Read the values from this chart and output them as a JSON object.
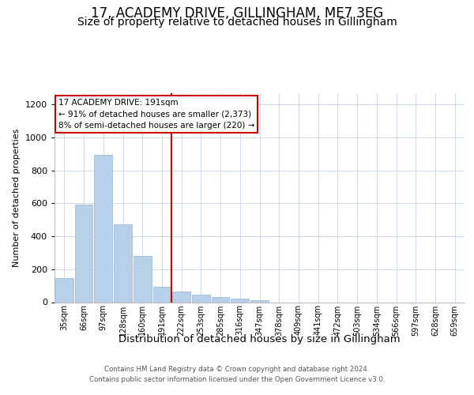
{
  "title": "17, ACADEMY DRIVE, GILLINGHAM, ME7 3EG",
  "subtitle": "Size of property relative to detached houses in Gillingham",
  "xlabel": "Distribution of detached houses by size in Gillingham",
  "ylabel": "Number of detached properties",
  "categories": [
    "35sqm",
    "66sqm",
    "97sqm",
    "128sqm",
    "160sqm",
    "191sqm",
    "222sqm",
    "253sqm",
    "285sqm",
    "316sqm",
    "347sqm",
    "378sqm",
    "409sqm",
    "441sqm",
    "472sqm",
    "503sqm",
    "534sqm",
    "566sqm",
    "597sqm",
    "628sqm",
    "659sqm"
  ],
  "values": [
    145,
    590,
    895,
    470,
    280,
    95,
    65,
    45,
    32,
    20,
    13,
    0,
    0,
    0,
    0,
    0,
    0,
    0,
    0,
    0,
    0
  ],
  "bar_color": "#b8d0e8",
  "bar_edge_color": "#90b8d8",
  "vline_color": "#cc0000",
  "vline_position": 5.5,
  "annotation_text": "17 ACADEMY DRIVE: 191sqm\n← 91% of detached houses are smaller (2,373)\n8% of semi-detached houses are larger (220) →",
  "annotation_box_facecolor": "#ffffff",
  "annotation_box_edgecolor": "#cc0000",
  "ylim": [
    0,
    1270
  ],
  "yticks": [
    0,
    200,
    400,
    600,
    800,
    1000,
    1200
  ],
  "background_color": "#ffffff",
  "grid_color": "#ccd8ec",
  "footer_line1": "Contains HM Land Registry data © Crown copyright and database right 2024.",
  "footer_line2": "Contains public sector information licensed under the Open Government Licence v3.0.",
  "title_fontsize": 12,
  "subtitle_fontsize": 10,
  "xlabel_fontsize": 9.5,
  "ylabel_fontsize": 8,
  "tick_fontsize": 8,
  "xtick_fontsize": 7
}
